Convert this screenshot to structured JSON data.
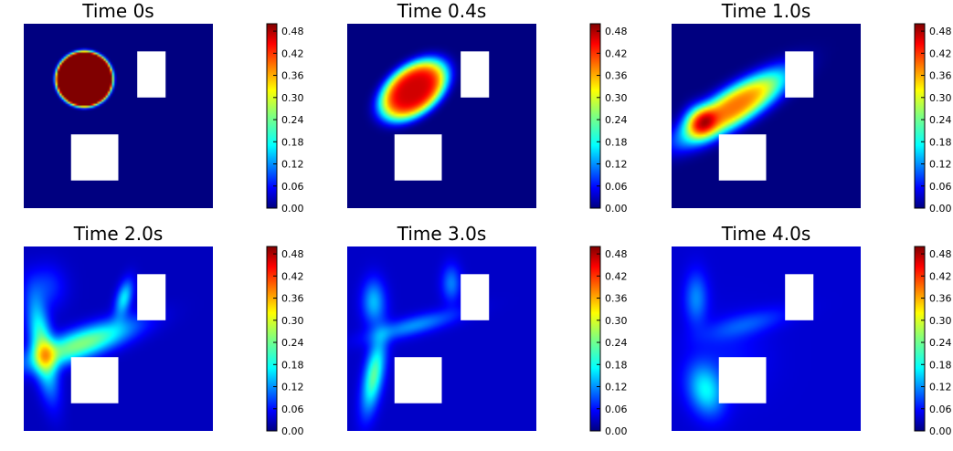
{
  "chart_data": {
    "type": "heatmap",
    "colormap": "jet",
    "grid": false,
    "axes_visible": false,
    "layout": {
      "rows": 2,
      "cols": 3
    },
    "colorbar": {
      "range": [
        0.0,
        0.5
      ],
      "ticks": [
        "0.00",
        "0.06",
        "0.12",
        "0.18",
        "0.24",
        "0.30",
        "0.36",
        "0.42",
        "0.48"
      ]
    },
    "domain": {
      "x": [
        0,
        1
      ],
      "y": [
        0,
        1
      ]
    },
    "obstacles": [
      {
        "x0": 0.6,
        "x1": 0.75,
        "y0": 0.6,
        "y1": 0.85
      },
      {
        "x0": 0.25,
        "x1": 0.5,
        "y0": 0.15,
        "y1": 0.4
      }
    ],
    "panels": [
      {
        "title": "Time 0s",
        "background": 0.0,
        "blobs": [
          {
            "cx": 0.32,
            "cy": 0.7,
            "rx": 0.15,
            "ry": 0.15,
            "rot": 0,
            "peak": 0.85,
            "sharp": 6
          }
        ]
      },
      {
        "title": "Time 0.4s",
        "background": 0.0,
        "blobs": [
          {
            "cx": 0.35,
            "cy": 0.64,
            "rx": 0.21,
            "ry": 0.13,
            "rot": 40,
            "peak": 0.46,
            "sharp": 2.2
          }
        ]
      },
      {
        "title": "Time 1.0s",
        "background": 0.0,
        "blobs": [
          {
            "cx": 0.33,
            "cy": 0.55,
            "rx": 0.33,
            "ry": 0.1,
            "rot": 33,
            "peak": 0.38,
            "sharp": 1.4
          },
          {
            "cx": 0.15,
            "cy": 0.47,
            "rx": 0.08,
            "ry": 0.09,
            "rot": 0,
            "peak": 0.18,
            "sharp": 1.2
          }
        ]
      },
      {
        "title": "Time 2.0s",
        "background": 0.03,
        "blobs": [
          {
            "cx": 0.3,
            "cy": 0.47,
            "rx": 0.3,
            "ry": 0.08,
            "rot": 20,
            "peak": 0.22,
            "sharp": 1.1
          },
          {
            "cx": 0.1,
            "cy": 0.45,
            "rx": 0.06,
            "ry": 0.26,
            "rot": 10,
            "peak": 0.2,
            "sharp": 1.1
          },
          {
            "cx": 0.53,
            "cy": 0.72,
            "rx": 0.04,
            "ry": 0.1,
            "rot": -15,
            "peak": 0.15,
            "sharp": 1.0
          },
          {
            "cx": 0.12,
            "cy": 0.78,
            "rx": 0.1,
            "ry": 0.12,
            "rot": 0,
            "peak": 0.06,
            "sharp": 1.0
          }
        ]
      },
      {
        "title": "Time 3.0s",
        "background": 0.035,
        "blobs": [
          {
            "cx": 0.14,
            "cy": 0.7,
            "rx": 0.06,
            "ry": 0.12,
            "rot": 0,
            "peak": 0.12,
            "sharp": 1.0
          },
          {
            "cx": 0.14,
            "cy": 0.3,
            "rx": 0.05,
            "ry": 0.2,
            "rot": -10,
            "peak": 0.2,
            "sharp": 1.0
          },
          {
            "cx": 0.35,
            "cy": 0.57,
            "rx": 0.24,
            "ry": 0.05,
            "rot": 15,
            "peak": 0.1,
            "sharp": 1.0
          },
          {
            "cx": 0.55,
            "cy": 0.8,
            "rx": 0.05,
            "ry": 0.1,
            "rot": 0,
            "peak": 0.09,
            "sharp": 1.0
          }
        ]
      },
      {
        "title": "Time 4.0s",
        "background": 0.04,
        "blobs": [
          {
            "cx": 0.13,
            "cy": 0.72,
            "rx": 0.06,
            "ry": 0.14,
            "rot": 0,
            "peak": 0.09,
            "sharp": 1.0
          },
          {
            "cx": 0.18,
            "cy": 0.22,
            "rx": 0.09,
            "ry": 0.14,
            "rot": 15,
            "peak": 0.14,
            "sharp": 1.0
          },
          {
            "cx": 0.4,
            "cy": 0.58,
            "rx": 0.22,
            "ry": 0.06,
            "rot": 15,
            "peak": 0.06,
            "sharp": 1.0
          },
          {
            "cx": 0.3,
            "cy": 0.4,
            "rx": 0.2,
            "ry": 0.2,
            "rot": 0,
            "peak": 0.03,
            "sharp": 1.0
          }
        ]
      }
    ]
  }
}
